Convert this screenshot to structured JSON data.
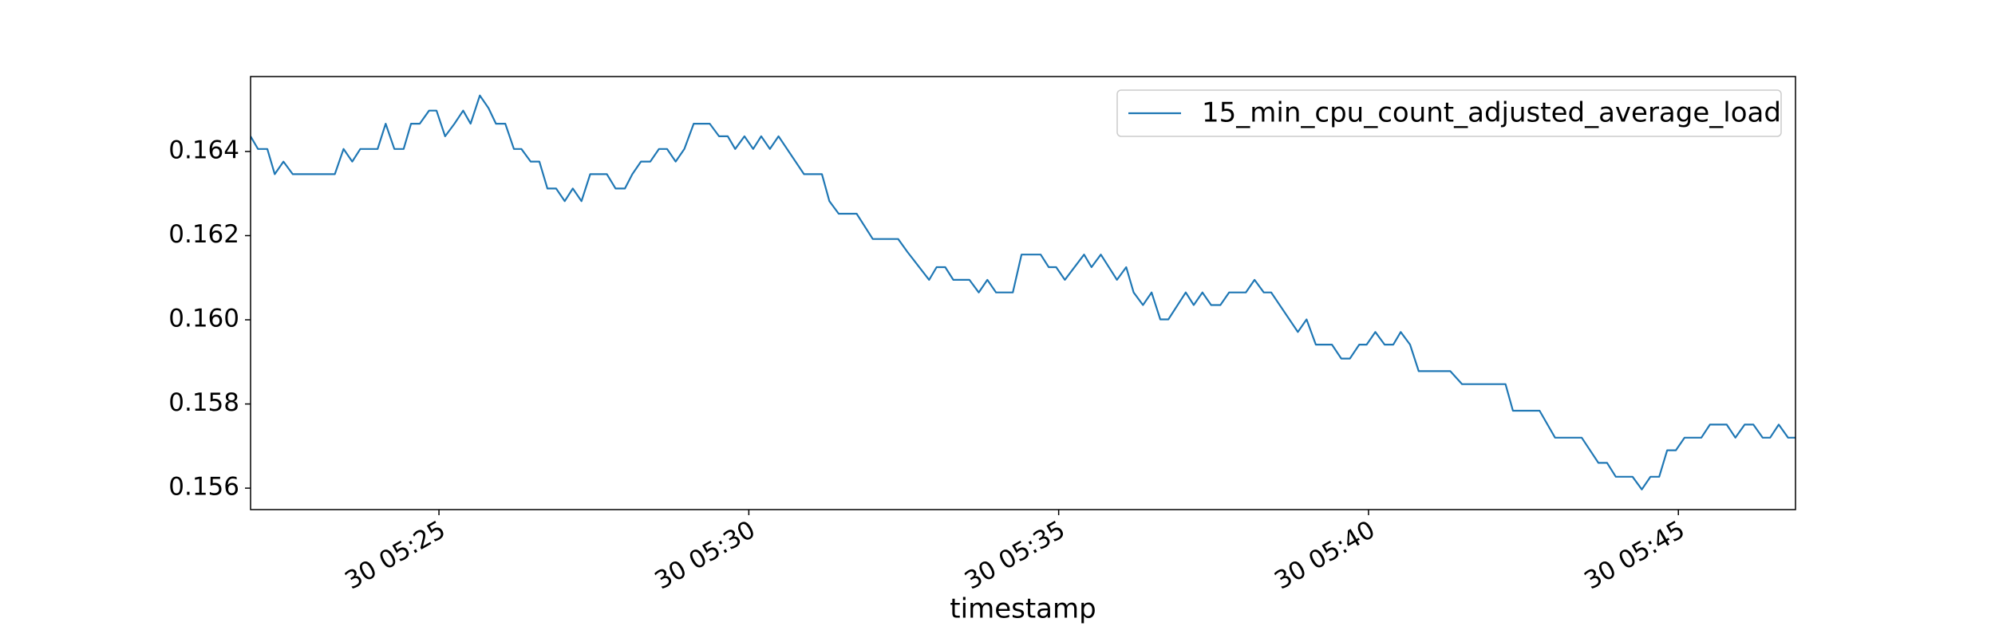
{
  "chart_data": {
    "type": "line",
    "x_label": "timestamp",
    "x": [
      21.96,
      22.08,
      22.23,
      22.35,
      22.49,
      22.64,
      23.32,
      23.46,
      23.6,
      23.73,
      24.01,
      24.14,
      24.28,
      24.43,
      24.55,
      24.69,
      24.84,
      24.96,
      25.1,
      25.25,
      25.39,
      25.51,
      25.66,
      25.8,
      25.92,
      26.07,
      26.21,
      26.33,
      26.48,
      26.62,
      26.75,
      26.89,
      27.03,
      27.16,
      27.3,
      27.44,
      27.71,
      27.85,
      28.0,
      28.12,
      28.26,
      28.41,
      28.55,
      28.68,
      28.82,
      28.96,
      29.11,
      29.37,
      29.52,
      29.66,
      29.78,
      29.93,
      30.07,
      30.2,
      30.34,
      30.48,
      30.89,
      31.18,
      31.3,
      31.45,
      31.74,
      32.0,
      32.41,
      32.56,
      32.91,
      33.03,
      33.17,
      33.3,
      33.56,
      33.71,
      33.85,
      33.99,
      34.26,
      34.4,
      34.71,
      34.84,
      34.96,
      35.1,
      35.41,
      35.53,
      35.68,
      35.94,
      36.09,
      36.21,
      36.36,
      36.5,
      36.64,
      36.77,
      37.05,
      37.18,
      37.32,
      37.46,
      37.61,
      37.75,
      38.02,
      38.16,
      38.31,
      38.43,
      38.86,
      39.0,
      39.15,
      39.41,
      39.56,
      39.7,
      39.85,
      39.97,
      40.11,
      40.26,
      40.4,
      40.52,
      40.67,
      40.81,
      41.32,
      41.51,
      42.21,
      42.33,
      42.76,
      43.01,
      43.44,
      43.71,
      43.85,
      43.99,
      44.26,
      44.41,
      44.55,
      44.69,
      44.82,
      44.96,
      45.1,
      45.37,
      45.51,
      45.78,
      45.92,
      46.07,
      46.21,
      46.36,
      46.48,
      46.62,
      46.77,
      46.89
    ],
    "series": [
      {
        "name": "15_min_cpu_count_adjusted_average_load",
        "color": "#1f77b4",
        "values": [
          0.16436,
          0.16406,
          0.16406,
          0.16346,
          0.16376,
          0.16346,
          0.16346,
          0.16406,
          0.16376,
          0.16406,
          0.16406,
          0.16466,
          0.16406,
          0.16406,
          0.16466,
          0.16466,
          0.16497,
          0.16497,
          0.16436,
          0.16466,
          0.16497,
          0.16466,
          0.16533,
          0.16503,
          0.16466,
          0.16466,
          0.16406,
          0.16406,
          0.16376,
          0.16376,
          0.16312,
          0.16312,
          0.16282,
          0.16312,
          0.16282,
          0.16346,
          0.16346,
          0.16312,
          0.16312,
          0.16346,
          0.16376,
          0.16376,
          0.16406,
          0.16406,
          0.16376,
          0.16406,
          0.16466,
          0.16466,
          0.16436,
          0.16436,
          0.16406,
          0.16436,
          0.16406,
          0.16436,
          0.16406,
          0.16436,
          0.16346,
          0.16346,
          0.16282,
          0.16252,
          0.16252,
          0.16192,
          0.16192,
          0.16161,
          0.16095,
          0.16125,
          0.16125,
          0.16095,
          0.16095,
          0.16065,
          0.16095,
          0.16065,
          0.16065,
          0.16155,
          0.16155,
          0.16125,
          0.16125,
          0.16095,
          0.16155,
          0.16125,
          0.16155,
          0.16095,
          0.16125,
          0.16065,
          0.16035,
          0.16065,
          0.16001,
          0.16001,
          0.16065,
          0.16035,
          0.16065,
          0.16035,
          0.16035,
          0.16065,
          0.16065,
          0.16095,
          0.16065,
          0.16065,
          0.15971,
          0.16001,
          0.15941,
          0.15941,
          0.15908,
          0.15908,
          0.15941,
          0.15941,
          0.15971,
          0.15941,
          0.15941,
          0.15971,
          0.15941,
          0.15878,
          0.15878,
          0.15847,
          0.15847,
          0.15784,
          0.15784,
          0.1572,
          0.1572,
          0.1566,
          0.1566,
          0.15627,
          0.15627,
          0.15597,
          0.15627,
          0.15627,
          0.1569,
          0.1569,
          0.1572,
          0.1572,
          0.15751,
          0.15751,
          0.1572,
          0.15751,
          0.15751,
          0.1572,
          0.1572,
          0.15751,
          0.1572,
          0.1572
        ]
      }
    ],
    "xlim": [
      21.96,
      46.89
    ],
    "xticks": [
      {
        "value": 25,
        "label": "30 05:25"
      },
      {
        "value": 30,
        "label": "30 05:30"
      },
      {
        "value": 35,
        "label": "30 05:35"
      },
      {
        "value": 40,
        "label": "30 05:40"
      },
      {
        "value": 45,
        "label": "30 05:45"
      }
    ],
    "ylim": [
      0.15549,
      0.16578
    ],
    "yticks": [
      0.156,
      0.158,
      {
        "value": 0.16,
        "label": "0.160"
      },
      0.162,
      0.164
    ],
    "legend": "upper right"
  }
}
